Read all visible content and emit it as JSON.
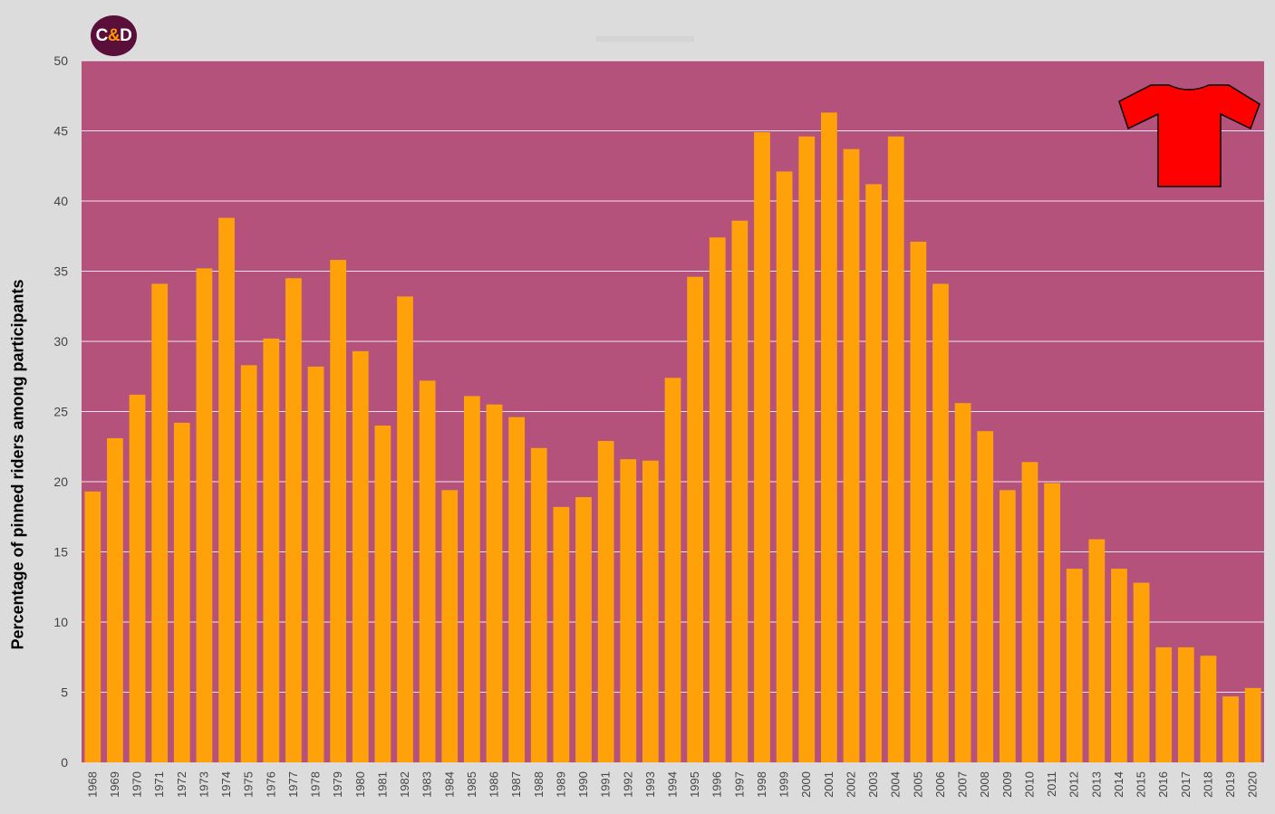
{
  "logo": {
    "left": "C",
    "amp": "&",
    "right": "D"
  },
  "colors": {
    "page_background": "#dcdcdc",
    "plot_background": "#b5527c",
    "bar": "#ffa20a",
    "gridline": "#ffffff",
    "jersey": "#ff0000"
  },
  "icons": {
    "jersey": "red-jersey-icon"
  },
  "chart_data": {
    "type": "bar",
    "title": "",
    "xlabel": "",
    "ylabel": "Percentage of pinned riders among participants",
    "ylim": [
      0,
      50
    ],
    "yticks": [
      0,
      5,
      10,
      15,
      20,
      25,
      30,
      35,
      40,
      45,
      50
    ],
    "grid": true,
    "categories": [
      "1968",
      "1969",
      "1970",
      "1971",
      "1972",
      "1973",
      "1974",
      "1975",
      "1976",
      "1977",
      "1978",
      "1979",
      "1980",
      "1981",
      "1982",
      "1983",
      "1984",
      "1985",
      "1986",
      "1987",
      "1988",
      "1989",
      "1990",
      "1991",
      "1992",
      "1993",
      "1994",
      "1995",
      "1996",
      "1997",
      "1998",
      "1999",
      "2000",
      "2001",
      "2002",
      "2003",
      "2004",
      "2005",
      "2006",
      "2007",
      "2008",
      "2009",
      "2010",
      "2011",
      "2012",
      "2013",
      "2014",
      "2015",
      "2016",
      "2017",
      "2018",
      "2019",
      "2020"
    ],
    "values": [
      19.3,
      23.1,
      26.2,
      34.1,
      24.2,
      35.2,
      38.8,
      28.3,
      30.2,
      34.5,
      28.2,
      35.8,
      29.3,
      24.0,
      33.2,
      27.2,
      19.4,
      26.1,
      25.5,
      24.6,
      22.4,
      18.2,
      18.9,
      22.9,
      21.6,
      21.5,
      27.4,
      34.6,
      37.4,
      38.6,
      44.9,
      42.1,
      44.6,
      46.3,
      43.7,
      41.2,
      44.6,
      37.1,
      34.1,
      25.6,
      23.6,
      19.4,
      21.4,
      19.9,
      13.8,
      15.9,
      13.8,
      12.8,
      8.2,
      8.2,
      7.6,
      4.7,
      5.3
    ]
  }
}
